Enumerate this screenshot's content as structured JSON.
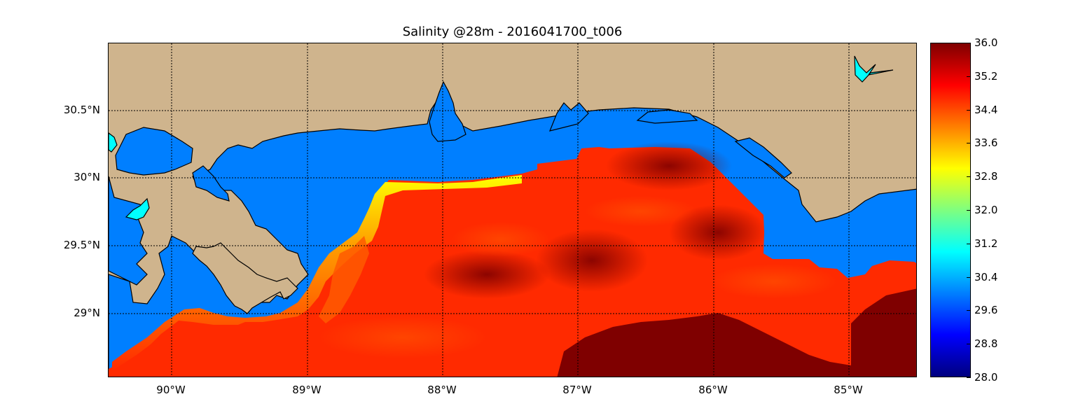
{
  "title": "Salinity @28m - 2016041700_t006",
  "x_ticks": [
    "90°W",
    "89°W",
    "88°W",
    "87°W",
    "86°W",
    "85°W"
  ],
  "y_ticks": [
    "30.5°N",
    "30°N",
    "29.5°N",
    "29°N"
  ],
  "colorbar": {
    "min": 28.0,
    "max": 36.0,
    "colormap": "jet",
    "tick_labels": [
      "36.0",
      "35.2",
      "34.4",
      "33.6",
      "32.8",
      "32.0",
      "31.2",
      "30.4",
      "29.6",
      "28.8",
      "28.0"
    ]
  },
  "colors": {
    "land": "#cfb48d",
    "water_no_data": "#007fff",
    "lake": "#00ffff",
    "high_salinity": "#7f0000",
    "mid_salinity": "#ff3300",
    "low_salinity_nearshore": "#ffcc00"
  }
}
